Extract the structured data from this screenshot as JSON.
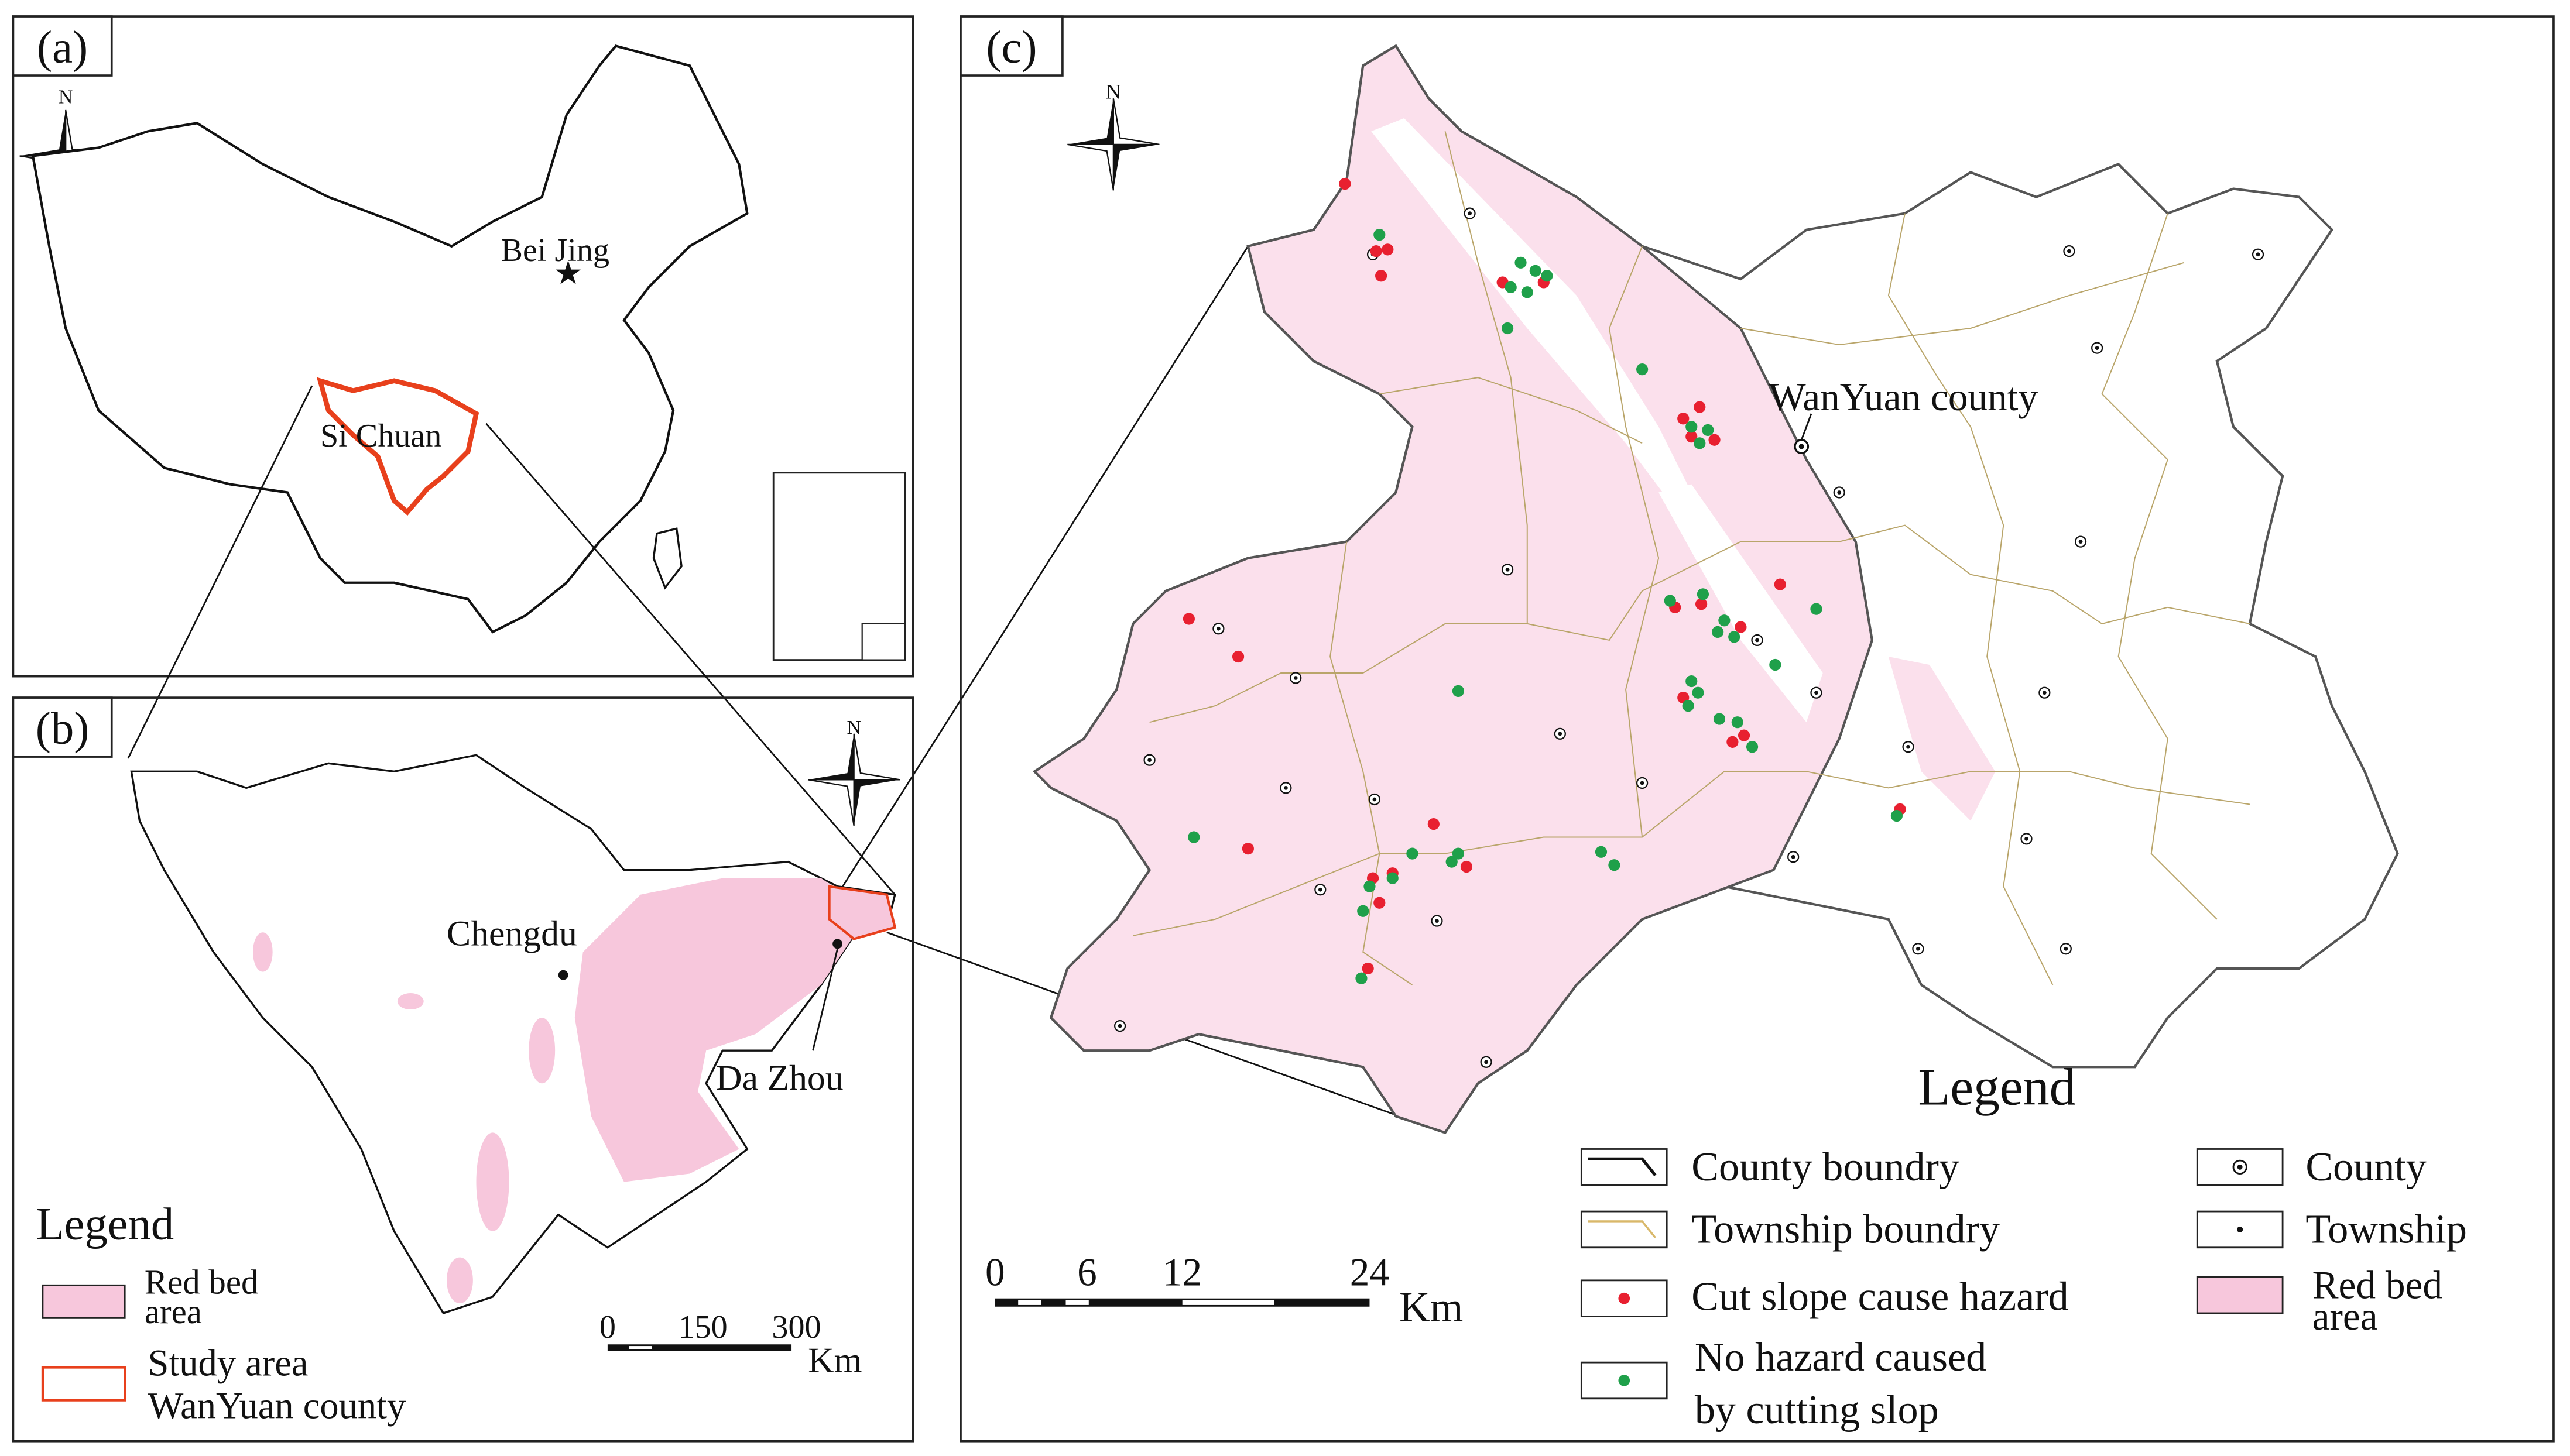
{
  "panel_a": {
    "label": "(a)",
    "north": "N",
    "places": [
      "Bei Jing",
      "Si Chuan"
    ]
  },
  "panel_b": {
    "label": "(b)",
    "north": "N",
    "places": [
      "Chengdu",
      "Da Zhou"
    ],
    "legend": {
      "title": "Legend",
      "items": [
        [
          "Red bed",
          "area"
        ],
        [
          "Study area",
          "WanYuan county"
        ]
      ]
    },
    "scale": {
      "ticks": [
        "0",
        "150",
        "300"
      ],
      "unit": "Km"
    }
  },
  "panel_c": {
    "label": "(c)",
    "north": "N",
    "places": [
      "WanYuan county"
    ],
    "legend": {
      "title": "Legend",
      "items": [
        [
          "County boundry"
        ],
        [
          "Township boundry"
        ],
        [
          "Cut slope cause hazard"
        ],
        [
          "No hazard caused",
          "by cutting slop"
        ],
        [
          "County"
        ],
        [
          "Township"
        ],
        [
          "Red bed",
          "area"
        ]
      ]
    },
    "scale": {
      "ticks": [
        "0",
        "6",
        "12",
        "24"
      ],
      "unit": "Km"
    }
  }
}
